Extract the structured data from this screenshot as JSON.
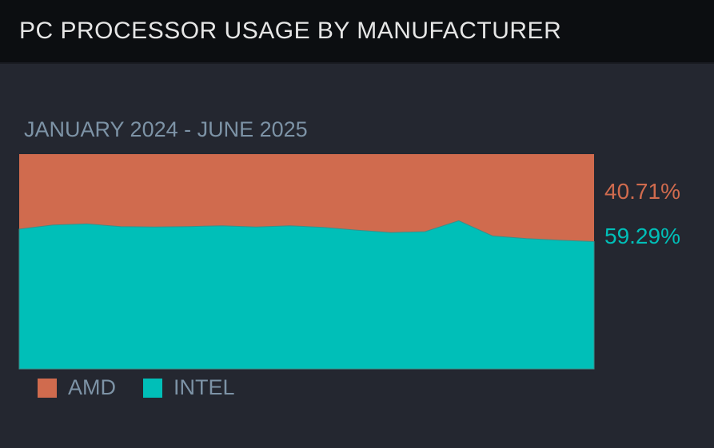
{
  "header": {
    "title": "PC PROCESSOR USAGE BY MANUFACTURER"
  },
  "colors": {
    "amd": "#d06b4e",
    "intel": "#00bfb8",
    "background": "#242730",
    "header": "#0c0e11"
  },
  "chart_data": {
    "type": "area",
    "stacked": true,
    "normalized": true,
    "title": "JANUARY 2024 - JUNE 2025",
    "xlabel": "",
    "ylabel": "",
    "ylim": [
      0,
      100
    ],
    "x": [
      "2024-01",
      "2024-02",
      "2024-03",
      "2024-04",
      "2024-05",
      "2024-06",
      "2024-07",
      "2024-08",
      "2024-09",
      "2024-10",
      "2024-11",
      "2024-12",
      "2025-01",
      "2025-02",
      "2025-03",
      "2025-04",
      "2025-05",
      "2025-06"
    ],
    "series": [
      {
        "name": "INTEL",
        "color": "#00bfb8",
        "values": [
          65.1,
          67.0,
          67.5,
          66.3,
          66.1,
          66.3,
          66.6,
          66.1,
          66.6,
          65.9,
          64.6,
          63.5,
          63.9,
          69.0,
          61.9,
          60.7,
          59.9,
          59.29
        ]
      },
      {
        "name": "AMD",
        "color": "#d06b4e",
        "values": [
          34.9,
          33.0,
          32.5,
          33.7,
          33.9,
          33.7,
          33.4,
          33.9,
          33.4,
          34.1,
          35.4,
          36.5,
          36.1,
          31.0,
          38.1,
          39.3,
          40.1,
          40.71
        ]
      }
    ],
    "end_labels": {
      "amd": "40.71%",
      "intel": "59.29%"
    },
    "legend": [
      "AMD",
      "INTEL"
    ],
    "legend_position": "bottom-left",
    "grid": false
  }
}
